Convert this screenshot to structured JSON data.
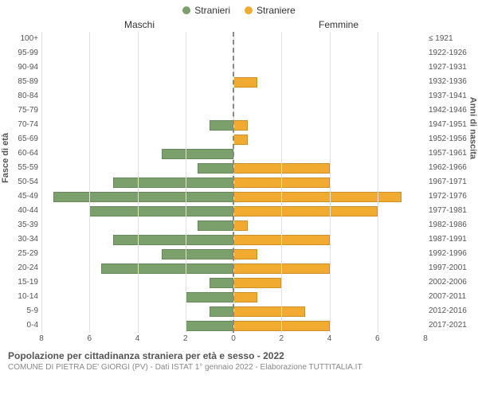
{
  "legend": {
    "male": {
      "label": "Stranieri",
      "color": "#7ca06b"
    },
    "female": {
      "label": "Straniere",
      "color": "#f0ab30"
    }
  },
  "column_headers": {
    "left": "Maschi",
    "right": "Femmine"
  },
  "y_title_left": "Fasce di età",
  "y_title_right": "Anni di nascita",
  "x_axis": {
    "max": 8,
    "ticks": [
      0,
      2,
      4,
      6,
      8
    ]
  },
  "bar_border": "rgba(0,0,0,0.15)",
  "grid_color": "#e1e1e1",
  "center_dash_color": "#888888",
  "background_color": "#ffffff",
  "rows": [
    {
      "age": "100+",
      "birth": "≤ 1921",
      "m": 0,
      "f": 0
    },
    {
      "age": "95-99",
      "birth": "1922-1926",
      "m": 0,
      "f": 0
    },
    {
      "age": "90-94",
      "birth": "1927-1931",
      "m": 0,
      "f": 0
    },
    {
      "age": "85-89",
      "birth": "1932-1936",
      "m": 0,
      "f": 1
    },
    {
      "age": "80-84",
      "birth": "1937-1941",
      "m": 0,
      "f": 0
    },
    {
      "age": "75-79",
      "birth": "1942-1946",
      "m": 0,
      "f": 0
    },
    {
      "age": "70-74",
      "birth": "1947-1951",
      "m": 1,
      "f": 0.6
    },
    {
      "age": "65-69",
      "birth": "1952-1956",
      "m": 0,
      "f": 0.6
    },
    {
      "age": "60-64",
      "birth": "1957-1961",
      "m": 3,
      "f": 0
    },
    {
      "age": "55-59",
      "birth": "1962-1966",
      "m": 1.5,
      "f": 4
    },
    {
      "age": "50-54",
      "birth": "1967-1971",
      "m": 5,
      "f": 4
    },
    {
      "age": "45-49",
      "birth": "1972-1976",
      "m": 7.5,
      "f": 7
    },
    {
      "age": "40-44",
      "birth": "1977-1981",
      "m": 6,
      "f": 6
    },
    {
      "age": "35-39",
      "birth": "1982-1986",
      "m": 1.5,
      "f": 0.6
    },
    {
      "age": "30-34",
      "birth": "1987-1991",
      "m": 5,
      "f": 4
    },
    {
      "age": "25-29",
      "birth": "1992-1996",
      "m": 3,
      "f": 1
    },
    {
      "age": "20-24",
      "birth": "1997-2001",
      "m": 5.5,
      "f": 4
    },
    {
      "age": "15-19",
      "birth": "2002-2006",
      "m": 1,
      "f": 2
    },
    {
      "age": "10-14",
      "birth": "2007-2011",
      "m": 2,
      "f": 1
    },
    {
      "age": "5-9",
      "birth": "2012-2016",
      "m": 1,
      "f": 3
    },
    {
      "age": "0-4",
      "birth": "2017-2021",
      "m": 2,
      "f": 4
    }
  ],
  "caption_main": "Popolazione per cittadinanza straniera per età e sesso - 2022",
  "caption_sub": "COMUNE DI PIETRA DE' GIORGI (PV) - Dati ISTAT 1° gennaio 2022 - Elaborazione TUTTITALIA.IT"
}
